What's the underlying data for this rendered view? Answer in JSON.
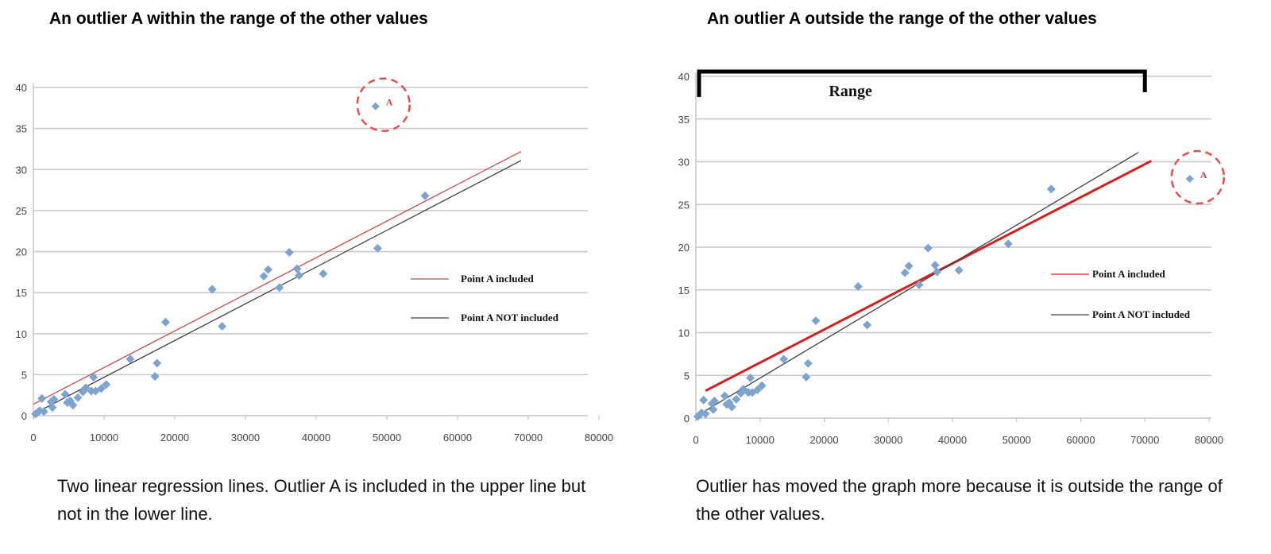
{
  "chart_data": [
    {
      "type": "scatter",
      "title": "An outlier A within the range of the other values",
      "caption": "Two linear regression lines. Outlier A is included in the upper line but not in the lower line.",
      "xlim": [
        0,
        80000
      ],
      "ylim": [
        0,
        40
      ],
      "xticks": [
        0,
        10000,
        20000,
        30000,
        40000,
        50000,
        60000,
        70000,
        80000
      ],
      "yticks": [
        0,
        5,
        10,
        15,
        20,
        25,
        30,
        35,
        40
      ],
      "grid": "horizontal",
      "legend_placement": "right",
      "points": [
        [
          300,
          0.2
        ],
        [
          600,
          0.4
        ],
        [
          900,
          0.6
        ],
        [
          1200,
          2.1
        ],
        [
          1500,
          0.5
        ],
        [
          2500,
          1.7
        ],
        [
          2700,
          1.0
        ],
        [
          2900,
          2.0
        ],
        [
          4500,
          2.6
        ],
        [
          4800,
          1.6
        ],
        [
          5200,
          1.8
        ],
        [
          5600,
          1.3
        ],
        [
          6300,
          2.2
        ],
        [
          7000,
          2.9
        ],
        [
          7400,
          3.4
        ],
        [
          8200,
          3.0
        ],
        [
          8500,
          4.7
        ],
        [
          8800,
          3.0
        ],
        [
          9600,
          3.3
        ],
        [
          10300,
          3.8
        ],
        [
          13700,
          6.9
        ],
        [
          17200,
          4.8
        ],
        [
          17500,
          6.4
        ],
        [
          18700,
          11.4
        ],
        [
          25300,
          15.4
        ],
        [
          26700,
          10.9
        ],
        [
          32600,
          17.0
        ],
        [
          33200,
          17.8
        ],
        [
          34800,
          15.6
        ],
        [
          36200,
          19.9
        ],
        [
          37300,
          17.9
        ],
        [
          37600,
          17.1
        ],
        [
          41000,
          17.3
        ],
        [
          48700,
          20.4
        ],
        [
          55400,
          26.8
        ]
      ],
      "outlier": {
        "label": "A",
        "point": [
          48400,
          37.7
        ]
      },
      "lines": [
        {
          "name": "Point A included",
          "color": "#c0504d",
          "from": [
            0,
            1.4
          ],
          "to": [
            69000,
            32.2
          ]
        },
        {
          "name": "Point A NOT included",
          "color": "#404040",
          "from": [
            0,
            0.2
          ],
          "to": [
            69000,
            31.1
          ]
        }
      ],
      "marker_color": "#7ea3cf"
    },
    {
      "type": "scatter",
      "title": "An outlier A outside the range of the other values",
      "caption": "Outlier has moved the graph more because it is outside the range of the other values.",
      "annotation": "Range",
      "range_bracket": [
        0,
        70000
      ],
      "xlim": [
        0,
        80000
      ],
      "ylim": [
        0,
        40
      ],
      "xticks": [
        0,
        10000,
        20000,
        30000,
        40000,
        50000,
        60000,
        70000,
        80000
      ],
      "yticks": [
        0,
        5,
        10,
        15,
        20,
        25,
        30,
        35,
        40
      ],
      "grid": "horizontal",
      "legend_placement": "right",
      "points": [
        [
          300,
          0.2
        ],
        [
          600,
          0.4
        ],
        [
          900,
          0.6
        ],
        [
          1200,
          2.1
        ],
        [
          1500,
          0.5
        ],
        [
          2500,
          1.7
        ],
        [
          2700,
          1.0
        ],
        [
          2900,
          2.0
        ],
        [
          4500,
          2.6
        ],
        [
          4800,
          1.6
        ],
        [
          5200,
          1.8
        ],
        [
          5600,
          1.3
        ],
        [
          6300,
          2.2
        ],
        [
          7000,
          2.9
        ],
        [
          7400,
          3.4
        ],
        [
          8200,
          3.0
        ],
        [
          8500,
          4.7
        ],
        [
          8800,
          3.0
        ],
        [
          9600,
          3.3
        ],
        [
          10300,
          3.8
        ],
        [
          13700,
          6.9
        ],
        [
          17200,
          4.8
        ],
        [
          17500,
          6.4
        ],
        [
          18700,
          11.4
        ],
        [
          25300,
          15.4
        ],
        [
          26700,
          10.9
        ],
        [
          32600,
          17.0
        ],
        [
          33200,
          17.8
        ],
        [
          34800,
          15.6
        ],
        [
          36200,
          19.9
        ],
        [
          37300,
          17.9
        ],
        [
          37600,
          17.1
        ],
        [
          41000,
          17.3
        ],
        [
          48700,
          20.4
        ],
        [
          55400,
          26.8
        ]
      ],
      "outlier": {
        "label": "A",
        "point": [
          77000,
          28.0
        ]
      },
      "lines": [
        {
          "name": "Point A included",
          "color": "#d42020",
          "from": [
            1500,
            3.2
          ],
          "to": [
            71000,
            30.1
          ]
        },
        {
          "name": "Point A NOT included",
          "color": "#404040",
          "from": [
            0,
            0.2
          ],
          "to": [
            69000,
            31.1
          ]
        }
      ],
      "marker_color": "#7ea3cf"
    }
  ]
}
